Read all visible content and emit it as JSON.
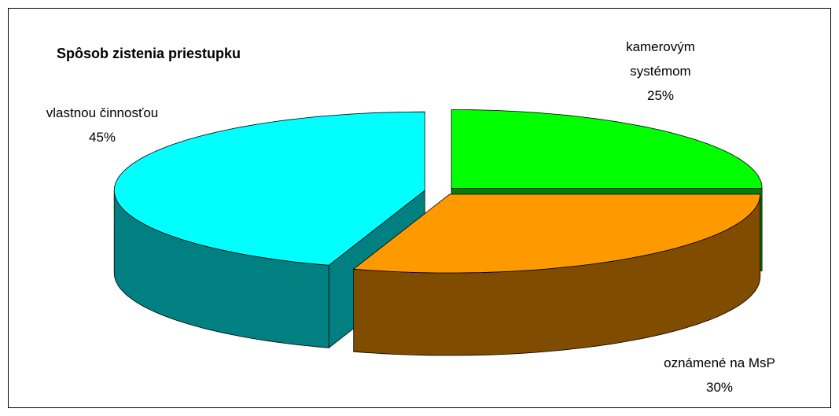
{
  "chart_data": {
    "type": "pie",
    "title": "Spôsob zistenia priestupku",
    "categories": [
      "kamerovým systémom",
      "oznámené na MsP",
      "vlastnou činnosťou"
    ],
    "values": [
      25,
      30,
      45
    ],
    "value_labels": [
      "25%",
      "30%",
      "45%"
    ],
    "colors": [
      "#00ff00",
      "#ff9900",
      "#00ffff"
    ],
    "side_colors": [
      "#008000",
      "#804c00",
      "#008080"
    ]
  }
}
